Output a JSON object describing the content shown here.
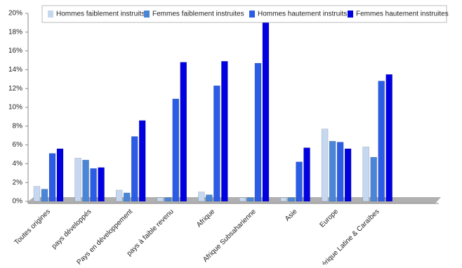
{
  "chart_data": {
    "type": "bar",
    "categories": [
      "Toutes origines",
      "pays développés",
      "Pays en développement",
      "pays à faible revenu",
      "Afrique",
      "Afrique Subsaharienne",
      "Asie",
      "Europe",
      "Amérique Latine & Caraïbes"
    ],
    "series": [
      {
        "name": "Hommes faiblement instruits",
        "color": "#c6d7f0",
        "values": [
          1.6,
          4.6,
          1.2,
          0.4,
          1.0,
          0.4,
          0.4,
          7.7,
          5.8
        ]
      },
      {
        "name": "Femmes faiblement instruites",
        "color": "#4a86d8",
        "values": [
          1.3,
          4.4,
          0.9,
          0.4,
          0.7,
          0.4,
          0.4,
          6.4,
          4.7
        ]
      },
      {
        "name": "Hommes hautement instruits",
        "color": "#2a5ce6",
        "values": [
          5.1,
          3.5,
          6.9,
          10.9,
          12.3,
          14.7,
          4.2,
          6.3,
          12.8
        ]
      },
      {
        "name": "Femmes hautement instruites",
        "color": "#0000e0",
        "values": [
          5.6,
          3.6,
          8.6,
          14.8,
          14.9,
          19.0,
          5.7,
          5.6,
          13.5
        ]
      }
    ],
    "ylim": [
      0,
      20
    ],
    "yticks": [
      {
        "value": 0,
        "label": "0%"
      },
      {
        "value": 2,
        "label": "2%"
      },
      {
        "value": 4,
        "label": "4%"
      },
      {
        "value": 6,
        "label": "6%"
      },
      {
        "value": 8,
        "label": "8%"
      },
      {
        "value": 10,
        "label": "10%"
      },
      {
        "value": 12,
        "label": "12%"
      },
      {
        "value": 14,
        "label": "14%"
      },
      {
        "value": 16,
        "label": "16%"
      },
      {
        "value": 18,
        "label": "18%"
      },
      {
        "value": 20,
        "label": "20%"
      }
    ],
    "legend": "top"
  }
}
